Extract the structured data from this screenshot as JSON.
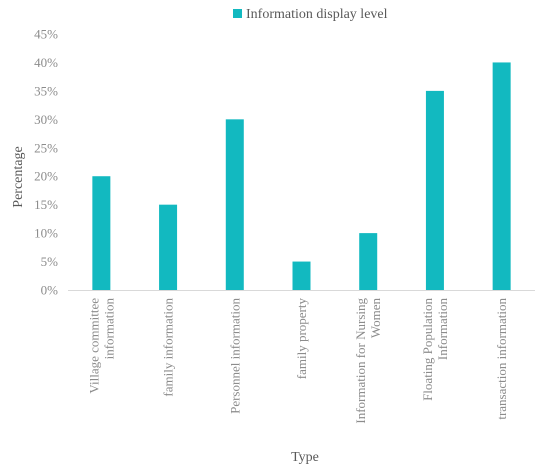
{
  "chart_data": {
    "type": "bar",
    "title": "",
    "xlabel": "Type",
    "ylabel": "Percentage",
    "ylim": [
      0,
      45
    ],
    "y_ticks": [
      0,
      5,
      10,
      15,
      20,
      25,
      30,
      35,
      40,
      45
    ],
    "y_tick_suffix": "%",
    "grid": false,
    "legend_position": "top",
    "categories": [
      [
        "Village committee",
        "information"
      ],
      [
        "family information"
      ],
      [
        "Personnel information"
      ],
      [
        "family property"
      ],
      [
        "Information for Nursing",
        "Women"
      ],
      [
        "Floating Population",
        "Information"
      ],
      [
        "transaction information"
      ]
    ],
    "series": [
      {
        "name": "Information display level",
        "color": "#12b9c0",
        "values": [
          20,
          15,
          30,
          5,
          10,
          35,
          40
        ]
      }
    ]
  }
}
